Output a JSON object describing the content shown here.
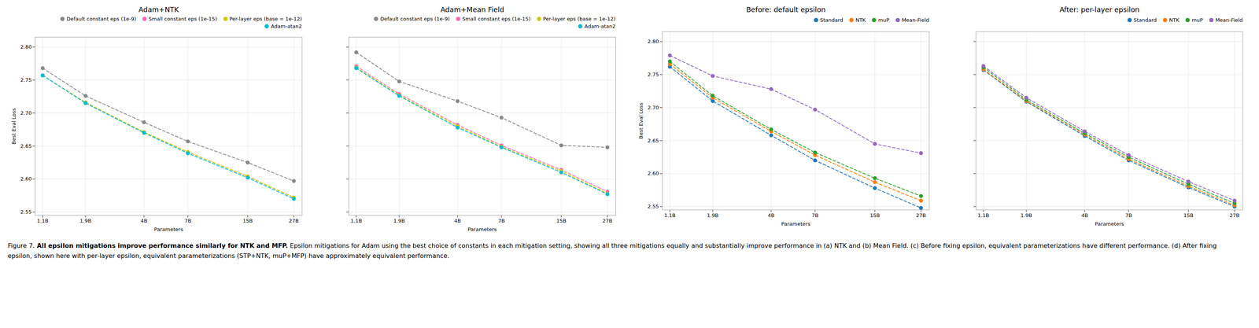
{
  "chart_data": [
    {
      "type": "line",
      "title": "Adam+NTK",
      "xlabel": "Parameters",
      "ylabel": "Best Eval Loss",
      "x": [
        1.1,
        1.9,
        4.0,
        7.0,
        15.0,
        27.0
      ],
      "series": [
        {
          "name": "Default constant eps (1e-9)",
          "color": "#888888",
          "values": [
            2.768,
            2.726,
            2.686,
            2.657,
            2.625,
            2.597
          ],
          "line_style": "dashed",
          "marker": "circle"
        },
        {
          "name": "Small constant eps (1e-15)",
          "color": "#ff69b4",
          "values": [
            2.757,
            2.716,
            2.671,
            2.641,
            2.604,
            2.572
          ],
          "line_style": "dashed",
          "marker": "circle"
        },
        {
          "name": "Per-layer eps (base = 1e-12)",
          "color": "#cccc00",
          "values": [
            2.757,
            2.716,
            2.671,
            2.641,
            2.604,
            2.572
          ],
          "line_style": "dashed",
          "marker": "circle"
        },
        {
          "name": "Adam-atan2",
          "color": "#00bcd4",
          "values": [
            2.757,
            2.715,
            2.67,
            2.639,
            2.602,
            2.57
          ],
          "line_style": "dashed",
          "marker": "circle"
        }
      ],
      "xlim": [
        1,
        30
      ],
      "xticks": [
        {
          "value": 1.1,
          "label": "1.1B"
        },
        {
          "value": 1.9,
          "label": "1.9B"
        },
        {
          "value": 4.0,
          "label": "4B"
        },
        {
          "value": 7.0,
          "label": "7B"
        },
        {
          "value": 15.0,
          "label": "15B"
        },
        {
          "value": 27.0,
          "label": "27B"
        }
      ],
      "ylim": [
        2.545,
        2.815
      ],
      "yticks": [
        2.55,
        {
          "value": 2.6,
          "label": "2.60"
        },
        2.65,
        {
          "value": 2.7,
          "label": "2.70"
        },
        2.75,
        {
          "value": 2.8,
          "label": "2.80"
        }
      ],
      "log": "x",
      "grid": true,
      "legend": "upper right"
    },
    {
      "type": "line",
      "title": "Adam+Mean Field",
      "xlabel": "Parameters",
      "x": [
        1.1,
        1.9,
        4.0,
        7.0,
        15.0,
        27.0
      ],
      "series": [
        {
          "name": "Default constant eps (1e-9)",
          "color": "#888888",
          "values": [
            2.792,
            2.748,
            2.718,
            2.693,
            2.651,
            2.648
          ],
          "line_style": "dashed",
          "marker": "circle"
        },
        {
          "name": "Small constant eps (1e-15)",
          "color": "#ff69b4",
          "values": [
            2.771,
            2.729,
            2.682,
            2.651,
            2.614,
            2.581
          ],
          "line_style": "dashed",
          "marker": "circle"
        },
        {
          "name": "Per-layer eps (base = 1e-12)",
          "color": "#cccc00",
          "values": [
            2.769,
            2.727,
            2.68,
            2.649,
            2.612,
            2.578
          ],
          "line_style": "dashed",
          "marker": "circle"
        },
        {
          "name": "Adam-atan2",
          "color": "#00bcd4",
          "values": [
            2.768,
            2.726,
            2.678,
            2.648,
            2.61,
            2.577
          ],
          "line_style": "dashed",
          "marker": "circle"
        }
      ],
      "xlim": [
        1,
        30
      ],
      "xticks": [
        {
          "value": 1.1,
          "label": "1.1B"
        },
        {
          "value": 1.9,
          "label": "1.9B"
        },
        {
          "value": 4.0,
          "label": "4B"
        },
        {
          "value": 7.0,
          "label": "7B"
        },
        {
          "value": 15.0,
          "label": "15B"
        },
        {
          "value": 27.0,
          "label": "27B"
        }
      ],
      "ylim": [
        2.545,
        2.815
      ],
      "yticks": [
        2.55,
        2.6,
        2.65,
        2.7,
        2.75,
        2.8
      ],
      "log": "x",
      "grid": true,
      "legend": "upper right",
      "tick_labels": "x"
    },
    {
      "type": "line",
      "title": "Before: default epsilon",
      "xlabel": "Parameters",
      "ylabel": "Best Eval Loss",
      "x": [
        1.1,
        1.9,
        4.0,
        7.0,
        15.0,
        27.0
      ],
      "series": [
        {
          "name": "Standard",
          "color": "#1f77b4",
          "values": [
            2.762,
            2.71,
            2.658,
            2.62,
            2.578,
            2.548
          ],
          "line_style": "dashed",
          "marker": "circle"
        },
        {
          "name": "NTK",
          "color": "#ff7f0e",
          "values": [
            2.766,
            2.715,
            2.664,
            2.628,
            2.587,
            2.559
          ],
          "line_style": "dashed",
          "marker": "circle"
        },
        {
          "name": "muP",
          "color": "#2ca02c",
          "values": [
            2.77,
            2.718,
            2.667,
            2.632,
            2.593,
            2.566
          ],
          "line_style": "dashed",
          "marker": "circle"
        },
        {
          "name": "Mean-Field",
          "color": "#9467bd",
          "values": [
            2.779,
            2.748,
            2.728,
            2.697,
            2.645,
            2.631
          ],
          "line_style": "dashed",
          "marker": "circle"
        }
      ],
      "xlim": [
        1,
        30
      ],
      "xticks": [
        {
          "value": 1.1,
          "label": "1.1B"
        },
        {
          "value": 1.9,
          "label": "1.9B"
        },
        {
          "value": 4.0,
          "label": "4B"
        },
        {
          "value": 7.0,
          "label": "7B"
        },
        {
          "value": 15.0,
          "label": "15B"
        },
        {
          "value": 27.0,
          "label": "27B"
        }
      ],
      "ylim": [
        2.545,
        2.815
      ],
      "yticks": [
        2.55,
        {
          "value": 2.6,
          "label": "2.60"
        },
        2.65,
        {
          "value": 2.7,
          "label": "2.70"
        },
        2.75,
        {
          "value": 2.8,
          "label": "2.80"
        }
      ],
      "log": "x",
      "grid": true,
      "legend": "upper right"
    },
    {
      "type": "line",
      "title": "After: per-layer epsilon",
      "xlabel": "Parameters",
      "x": [
        1.1,
        1.9,
        4.0,
        7.0,
        15.0,
        27.0
      ],
      "series": [
        {
          "name": "Standard",
          "color": "#1f77b4",
          "values": [
            2.757,
            2.709,
            2.657,
            2.62,
            2.579,
            2.55
          ],
          "line_style": "dashed",
          "marker": "circle"
        },
        {
          "name": "NTK",
          "color": "#ff7f0e",
          "values": [
            2.758,
            2.71,
            2.659,
            2.622,
            2.581,
            2.552
          ],
          "line_style": "dashed",
          "marker": "circle"
        },
        {
          "name": "muP",
          "color": "#2ca02c",
          "values": [
            2.761,
            2.712,
            2.661,
            2.625,
            2.584,
            2.555
          ],
          "line_style": "dashed",
          "marker": "circle"
        },
        {
          "name": "Mean-Field",
          "color": "#9467bd",
          "values": [
            2.763,
            2.715,
            2.664,
            2.628,
            2.588,
            2.559
          ],
          "line_style": "dashed",
          "marker": "circle"
        }
      ],
      "xlim": [
        1,
        30
      ],
      "xticks": [
        {
          "value": 1.1,
          "label": "1.1B"
        },
        {
          "value": 1.9,
          "label": "1.9B"
        },
        {
          "value": 4.0,
          "label": "4B"
        },
        {
          "value": 7.0,
          "label": "7B"
        },
        {
          "value": 15.0,
          "label": "15B"
        },
        {
          "value": 27.0,
          "label": "27B"
        }
      ],
      "ylim": [
        2.545,
        2.815
      ],
      "yticks": [
        2.55,
        2.6,
        2.65,
        2.7,
        2.75,
        2.8
      ],
      "log": "x",
      "grid": true,
      "legend": "upper right",
      "tick_labels": "x"
    }
  ],
  "caption": [
    "Figure 7.",
    "All epsilon mitigations improve performance similarly for NTK and MFP.",
    "Epsilon mitigations for Adam using the best choice of constants in each mitigation setting, showing all three mitigations equally and substantially improve performance in (a) NTK and (b) Mean Field. (c) Before fixing epsilon, equivalent parameterizations have different performance. (d) After fixing epsilon, shown here with per-layer epsilon, equivalent parameterizations (STP+NTK, muP+MFP) have approximately equivalent performance."
  ]
}
